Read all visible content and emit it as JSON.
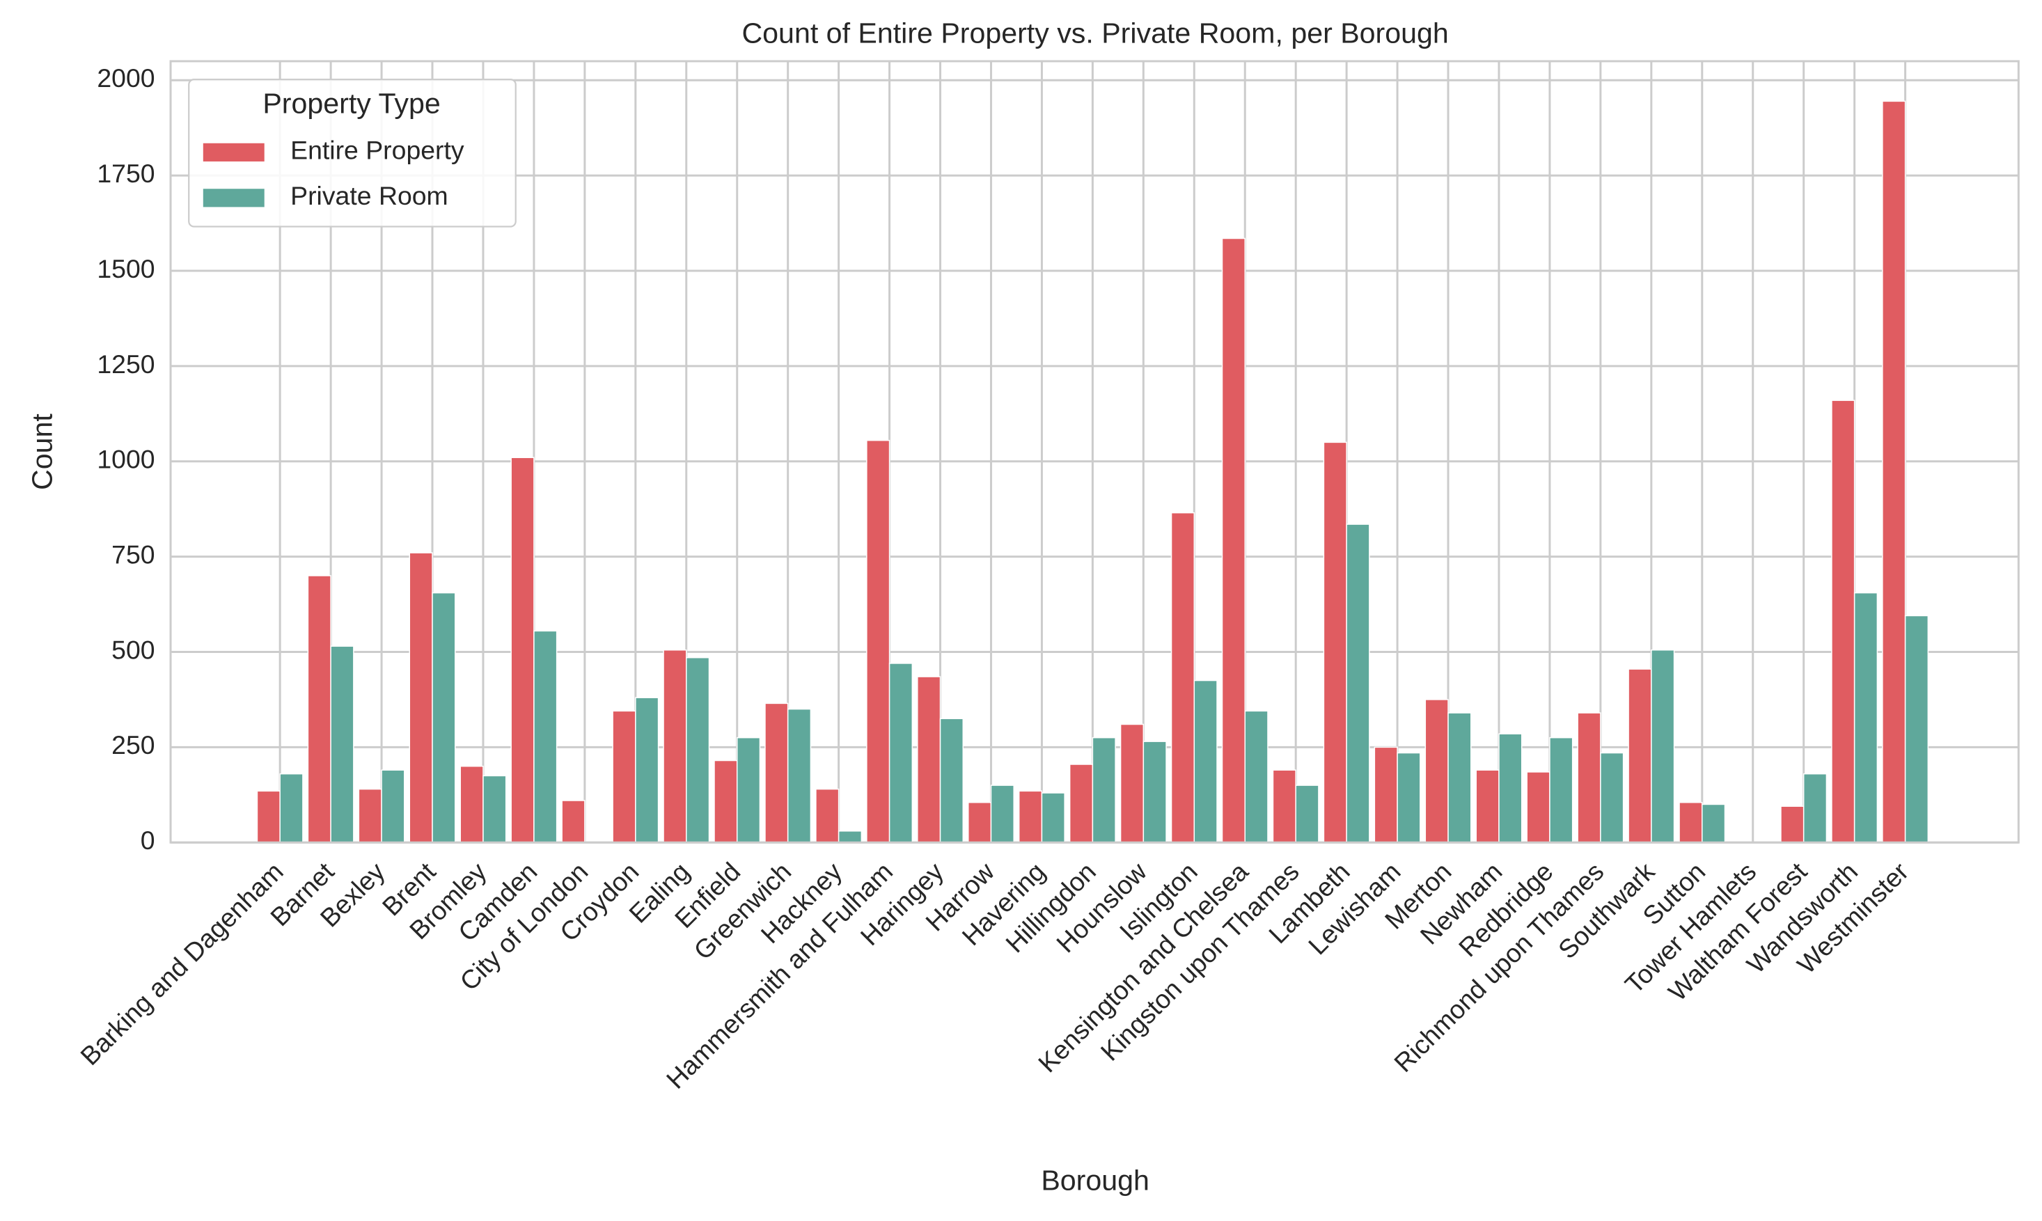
{
  "chart_data": {
    "type": "bar",
    "title": "Count of Entire Property vs. Private Room, per Borough",
    "x_label": "Borough",
    "y_label": "Count",
    "legend_title": "Property Type",
    "legend_position": "upper left",
    "grid": true,
    "categories": [
      "Barking and Dagenham",
      "Barnet",
      "Bexley",
      "Brent",
      "Bromley",
      "Camden",
      "City of London",
      "Croydon",
      "Ealing",
      "Enfield",
      "Greenwich",
      "Hackney",
      "Hammersmith and Fulham",
      "Haringey",
      "Harrow",
      "Havering",
      "Hillingdon",
      "Hounslow",
      "Islington",
      "Kensington and Chelsea",
      "Kingston upon Thames",
      "Lambeth",
      "Lewisham",
      "Merton",
      "Newham",
      "Redbridge",
      "Richmond upon Thames",
      "Southwark",
      "Sutton",
      "Tower Hamlets",
      "Waltham Forest",
      "Wandsworth",
      "Westminster"
    ],
    "series": [
      {
        "name": "Entire Property",
        "color": "#e05c61",
        "values": [
          135,
          700,
          140,
          760,
          200,
          1010,
          110,
          345,
          505,
          215,
          365,
          140,
          1055,
          435,
          105,
          135,
          205,
          310,
          865,
          1585,
          190,
          1050,
          250,
          375,
          190,
          185,
          340,
          455,
          105,
          0,
          95,
          1160,
          1945
        ]
      },
      {
        "name": "Private Room",
        "color": "#5fa89b",
        "values": [
          180,
          515,
          190,
          655,
          175,
          555,
          0,
          380,
          485,
          275,
          350,
          30,
          470,
          325,
          150,
          130,
          275,
          265,
          425,
          345,
          150,
          835,
          235,
          340,
          285,
          275,
          235,
          505,
          100,
          0,
          180,
          655,
          595
        ]
      }
    ],
    "ylim": [
      0,
      2050
    ],
    "yticks": [
      0,
      250,
      500,
      750,
      1000,
      1250,
      1500,
      1750,
      2000
    ]
  }
}
